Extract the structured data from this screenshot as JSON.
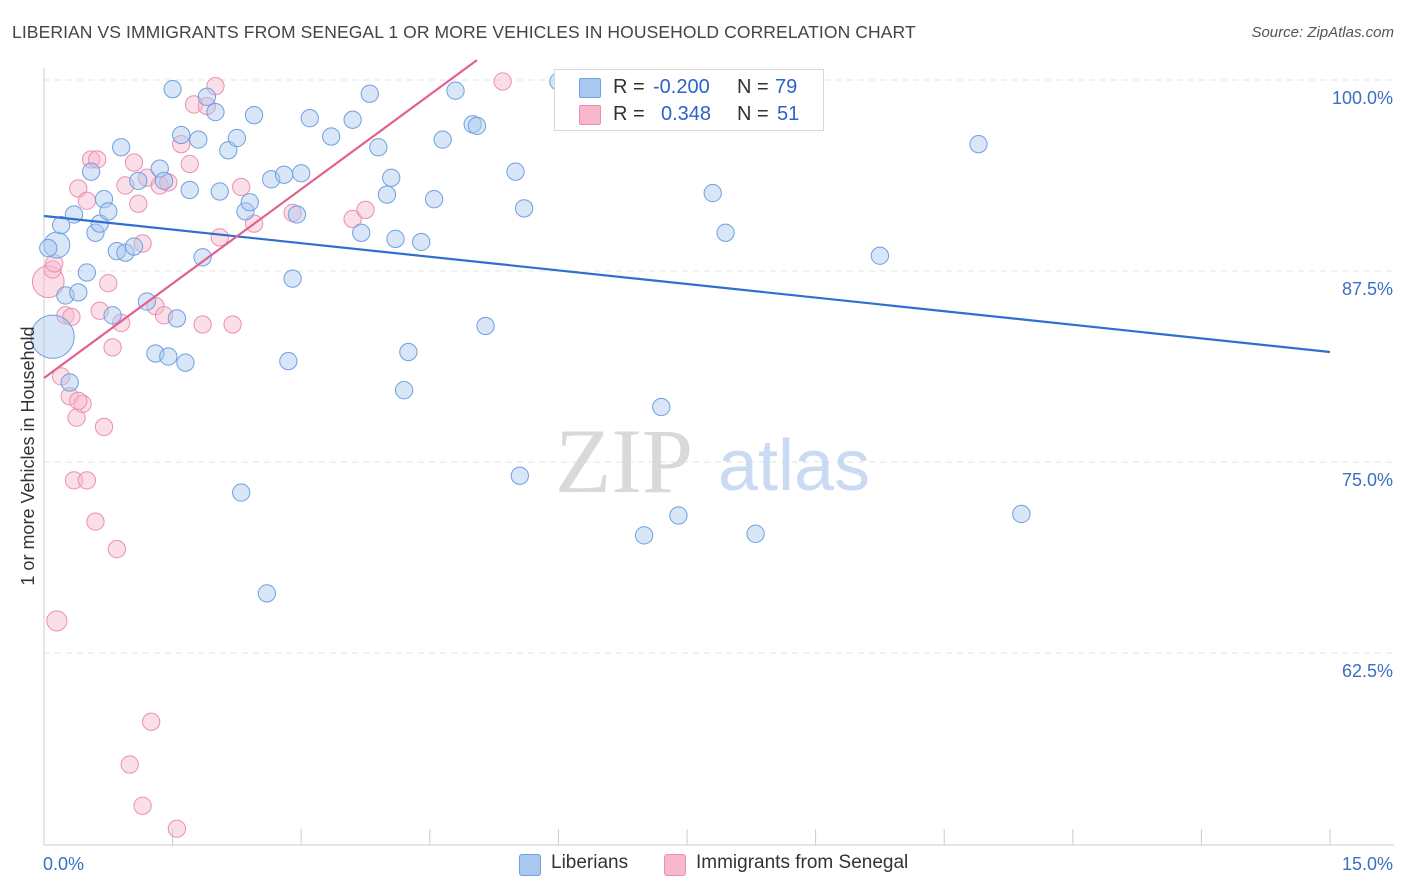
{
  "title": "LIBERIAN VS IMMIGRANTS FROM SENEGAL 1 OR MORE VEHICLES IN HOUSEHOLD CORRELATION CHART",
  "source": "Source: ZipAtlas.com",
  "watermark": {
    "zip": "ZIP",
    "atlas": "atlas"
  },
  "legend": {
    "rows": [
      {
        "r_label": "R =",
        "r_value": "-0.200",
        "n_label": "N =",
        "n_value": "79",
        "color": "#a9c8f0"
      },
      {
        "r_label": "R =",
        "r_value": "0.348",
        "n_label": "N =",
        "n_value": "51",
        "color": "#f7b8cc"
      }
    ]
  },
  "bottom_legend": {
    "items": [
      {
        "label": "Liberians",
        "color": "#a9c8f0"
      },
      {
        "label": "Immigrants from Senegal",
        "color": "#f7b8cc"
      }
    ]
  },
  "chart_data": {
    "type": "scatter",
    "title": "LIBERIAN VS IMMIGRANTS FROM SENEGAL 1 OR MORE VEHICLES IN HOUSEHOLD CORRELATION CHART",
    "xlabel": "",
    "ylabel": "1 or more Vehicles in Household",
    "xlim": [
      0,
      15
    ],
    "ylim": [
      52,
      101
    ],
    "x_tick_labels": [
      "0.0%",
      "15.0%"
    ],
    "y_ticks": [
      62.5,
      75.0,
      87.5,
      100.0
    ],
    "y_tick_labels": [
      "62.5%",
      "75.0%",
      "87.5%",
      "100.0%"
    ],
    "grid": true,
    "series": [
      {
        "name": "Liberians",
        "color": "#6fa0e0",
        "fill": "rgba(169,200,240,0.45)",
        "line_color": "#2f6fd0",
        "trend": {
          "x": [
            0,
            15
          ],
          "y": [
            91.1,
            82.2
          ]
        },
        "points": [
          [
            0.1,
            83.2
          ],
          [
            0.15,
            89.2
          ],
          [
            0.2,
            90.5
          ],
          [
            0.25,
            85.9
          ],
          [
            0.3,
            80.2
          ],
          [
            0.35,
            91.2
          ],
          [
            0.4,
            86.1
          ],
          [
            0.5,
            87.4
          ],
          [
            0.55,
            94.0
          ],
          [
            0.6,
            90.0
          ],
          [
            0.65,
            90.6
          ],
          [
            0.7,
            92.2
          ],
          [
            0.75,
            91.4
          ],
          [
            0.8,
            84.6
          ],
          [
            0.85,
            88.8
          ],
          [
            0.9,
            95.6
          ],
          [
            0.95,
            88.7
          ],
          [
            1.05,
            89.1
          ],
          [
            1.1,
            93.4
          ],
          [
            1.2,
            85.5
          ],
          [
            1.3,
            82.1
          ],
          [
            1.35,
            94.2
          ],
          [
            1.4,
            93.4
          ],
          [
            1.45,
            81.9
          ],
          [
            1.5,
            99.4
          ],
          [
            1.55,
            84.4
          ],
          [
            1.6,
            96.4
          ],
          [
            1.65,
            81.5
          ],
          [
            1.7,
            92.8
          ],
          [
            1.8,
            96.1
          ],
          [
            1.85,
            88.4
          ],
          [
            1.9,
            98.9
          ],
          [
            2.0,
            97.9
          ],
          [
            2.05,
            92.7
          ],
          [
            2.15,
            95.4
          ],
          [
            2.25,
            96.2
          ],
          [
            2.3,
            73.0
          ],
          [
            2.35,
            91.4
          ],
          [
            2.4,
            92.0
          ],
          [
            2.45,
            97.7
          ],
          [
            2.6,
            66.4
          ],
          [
            2.65,
            93.5
          ],
          [
            2.8,
            93.8
          ],
          [
            2.85,
            81.6
          ],
          [
            2.9,
            87.0
          ],
          [
            2.95,
            91.2
          ],
          [
            3.0,
            93.9
          ],
          [
            3.1,
            97.5
          ],
          [
            3.35,
            96.3
          ],
          [
            3.6,
            97.4
          ],
          [
            3.7,
            90.0
          ],
          [
            3.8,
            99.1
          ],
          [
            3.9,
            95.6
          ],
          [
            4.0,
            92.5
          ],
          [
            4.05,
            93.6
          ],
          [
            4.1,
            89.6
          ],
          [
            4.2,
            79.7
          ],
          [
            4.25,
            82.2
          ],
          [
            4.4,
            89.4
          ],
          [
            4.55,
            92.2
          ],
          [
            4.65,
            96.1
          ],
          [
            4.8,
            99.3
          ],
          [
            5.0,
            97.1
          ],
          [
            5.05,
            97.0
          ],
          [
            5.15,
            83.9
          ],
          [
            5.5,
            94.0
          ],
          [
            5.55,
            74.1
          ],
          [
            5.6,
            91.6
          ],
          [
            6.0,
            99.9
          ],
          [
            7.0,
            70.2
          ],
          [
            7.2,
            78.6
          ],
          [
            7.4,
            71.5
          ],
          [
            7.8,
            92.6
          ],
          [
            7.95,
            90.0
          ],
          [
            8.3,
            70.3
          ],
          [
            9.75,
            88.5
          ],
          [
            10.9,
            95.8
          ],
          [
            11.4,
            71.6
          ],
          [
            0.05,
            89.0
          ]
        ],
        "sizes": [
          30,
          18,
          12,
          12,
          12,
          12,
          12,
          12,
          12,
          12,
          12,
          12,
          12,
          12,
          12,
          12,
          12,
          12,
          12,
          12,
          12,
          12,
          12,
          12,
          12,
          12,
          12,
          12,
          12,
          12,
          12,
          12,
          12,
          12,
          12,
          12,
          12,
          12,
          12,
          12,
          12,
          12,
          12,
          12,
          12,
          12,
          12,
          12,
          12,
          12,
          12,
          12,
          12,
          12,
          12,
          12,
          12,
          12,
          12,
          12,
          12,
          12,
          12,
          12,
          12,
          12,
          12,
          12,
          12,
          12,
          12,
          12,
          12,
          12,
          12,
          12,
          12,
          12,
          12
        ]
      },
      {
        "name": "Immigrants from Senegal",
        "color": "#eb8fb0",
        "fill": "rgba(247,184,204,0.45)",
        "line_color": "#e0608e",
        "trend": {
          "x": [
            0,
            5.05
          ],
          "y": [
            80.5,
            101.3
          ]
        },
        "points": [
          [
            0.05,
            86.8
          ],
          [
            0.1,
            87.6
          ],
          [
            0.12,
            88.0
          ],
          [
            0.15,
            64.6
          ],
          [
            0.2,
            80.6
          ],
          [
            0.25,
            84.6
          ],
          [
            0.3,
            79.3
          ],
          [
            0.35,
            73.8
          ],
          [
            0.38,
            77.9
          ],
          [
            0.4,
            92.9
          ],
          [
            0.45,
            78.8
          ],
          [
            0.5,
            92.1
          ],
          [
            0.55,
            94.8
          ],
          [
            0.6,
            71.1
          ],
          [
            0.65,
            84.9
          ],
          [
            0.7,
            77.3
          ],
          [
            0.75,
            86.7
          ],
          [
            0.8,
            82.5
          ],
          [
            0.85,
            69.3
          ],
          [
            0.9,
            84.1
          ],
          [
            0.95,
            93.1
          ],
          [
            1.0,
            55.2
          ],
          [
            1.05,
            94.6
          ],
          [
            1.1,
            91.9
          ],
          [
            1.15,
            89.3
          ],
          [
            1.2,
            93.6
          ],
          [
            1.25,
            58.0
          ],
          [
            1.3,
            85.2
          ],
          [
            1.35,
            93.1
          ],
          [
            1.4,
            84.6
          ],
          [
            1.45,
            93.3
          ],
          [
            1.55,
            51.0
          ],
          [
            1.6,
            95.8
          ],
          [
            1.7,
            94.5
          ],
          [
            1.75,
            98.4
          ],
          [
            1.85,
            84.0
          ],
          [
            1.9,
            98.3
          ],
          [
            2.0,
            99.6
          ],
          [
            2.05,
            89.7
          ],
          [
            2.2,
            84.0
          ],
          [
            2.3,
            93.0
          ],
          [
            2.45,
            90.6
          ],
          [
            2.9,
            91.3
          ],
          [
            3.6,
            90.9
          ],
          [
            3.75,
            91.5
          ],
          [
            5.35,
            99.9
          ],
          [
            1.15,
            52.5
          ],
          [
            0.4,
            79.0
          ],
          [
            0.5,
            73.8
          ],
          [
            0.32,
            84.5
          ],
          [
            0.62,
            94.8
          ]
        ],
        "sizes": [
          22,
          12,
          12,
          14,
          12,
          12,
          12,
          12,
          12,
          12,
          12,
          12,
          12,
          12,
          12,
          12,
          12,
          12,
          12,
          12,
          12,
          12,
          12,
          12,
          12,
          12,
          12,
          12,
          12,
          12,
          12,
          12,
          12,
          12,
          12,
          12,
          12,
          12,
          12,
          12,
          12,
          12,
          12,
          12,
          12,
          12,
          12,
          12,
          12,
          12,
          12
        ]
      }
    ]
  }
}
